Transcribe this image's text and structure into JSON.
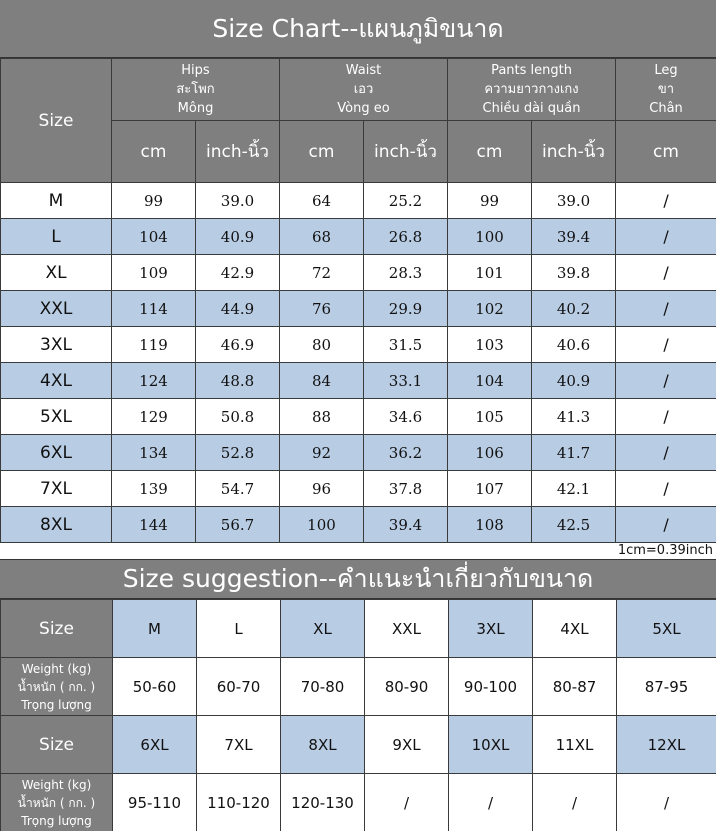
{
  "chart_title": "Size Chart--แผนภูมิขนาด",
  "size_header": "Size",
  "groups": [
    {
      "lines": [
        "Hips",
        "สะโพก",
        "Mông"
      ]
    },
    {
      "lines": [
        "Waist",
        "เอว",
        "Vòng eo"
      ]
    },
    {
      "lines": [
        "Pants length",
        "ความยาวกางเกง",
        "Chiều dài quần"
      ]
    },
    {
      "lines": [
        "Leg",
        "ขา",
        "Chân"
      ]
    }
  ],
  "units": [
    "cm",
    "inch-นิ้ว",
    "cm",
    "inch-นิ้ว",
    "cm",
    "inch-นิ้ว",
    "cm"
  ],
  "rows": [
    {
      "size": "M",
      "vals": [
        "99",
        "39.0",
        "64",
        "25.2",
        "99",
        "39.0",
        "/"
      ]
    },
    {
      "size": "L",
      "vals": [
        "104",
        "40.9",
        "68",
        "26.8",
        "100",
        "39.4",
        "/"
      ]
    },
    {
      "size": "XL",
      "vals": [
        "109",
        "42.9",
        "72",
        "28.3",
        "101",
        "39.8",
        "/"
      ]
    },
    {
      "size": "XXL",
      "vals": [
        "114",
        "44.9",
        "76",
        "29.9",
        "102",
        "40.2",
        "/"
      ]
    },
    {
      "size": "3XL",
      "vals": [
        "119",
        "46.9",
        "80",
        "31.5",
        "103",
        "40.6",
        "/"
      ]
    },
    {
      "size": "4XL",
      "vals": [
        "124",
        "48.8",
        "84",
        "33.1",
        "104",
        "40.9",
        "/"
      ]
    },
    {
      "size": "5XL",
      "vals": [
        "129",
        "50.8",
        "88",
        "34.6",
        "105",
        "41.3",
        "/"
      ]
    },
    {
      "size": "6XL",
      "vals": [
        "134",
        "52.8",
        "92",
        "36.2",
        "106",
        "41.7",
        "/"
      ]
    },
    {
      "size": "7XL",
      "vals": [
        "139",
        "54.7",
        "96",
        "37.8",
        "107",
        "42.1",
        "/"
      ]
    },
    {
      "size": "8XL",
      "vals": [
        "144",
        "56.7",
        "100",
        "39.4",
        "108",
        "42.5",
        "/"
      ]
    }
  ],
  "conversion_note": "1cm=0.39inch",
  "suggestion_title": "Size suggestion--คำแนะนำเกี่ยวกับขนาด",
  "suggestion": {
    "size_label": "Size",
    "weight_label": [
      "Weight (kg)",
      "น้ำหนัก ( กก. )",
      "Trọng lượng"
    ],
    "blocks": [
      {
        "sizes": [
          "M",
          "L",
          "XL",
          "XXL",
          "3XL",
          "4XL",
          "5XL"
        ],
        "weights": [
          "50-60",
          "60-70",
          "70-80",
          "80-90",
          "90-100",
          "80-87",
          "87-95"
        ]
      },
      {
        "sizes": [
          "6XL",
          "7XL",
          "8XL",
          "9XL",
          "10XL",
          "11XL",
          "12XL"
        ],
        "weights": [
          "95-110",
          "110-120",
          "120-130",
          "/",
          "/",
          "/",
          "/"
        ]
      }
    ]
  },
  "colors": {
    "header_gray": "#7f7f7f",
    "row_blue": "#b8cce4",
    "row_white": "#ffffff"
  }
}
